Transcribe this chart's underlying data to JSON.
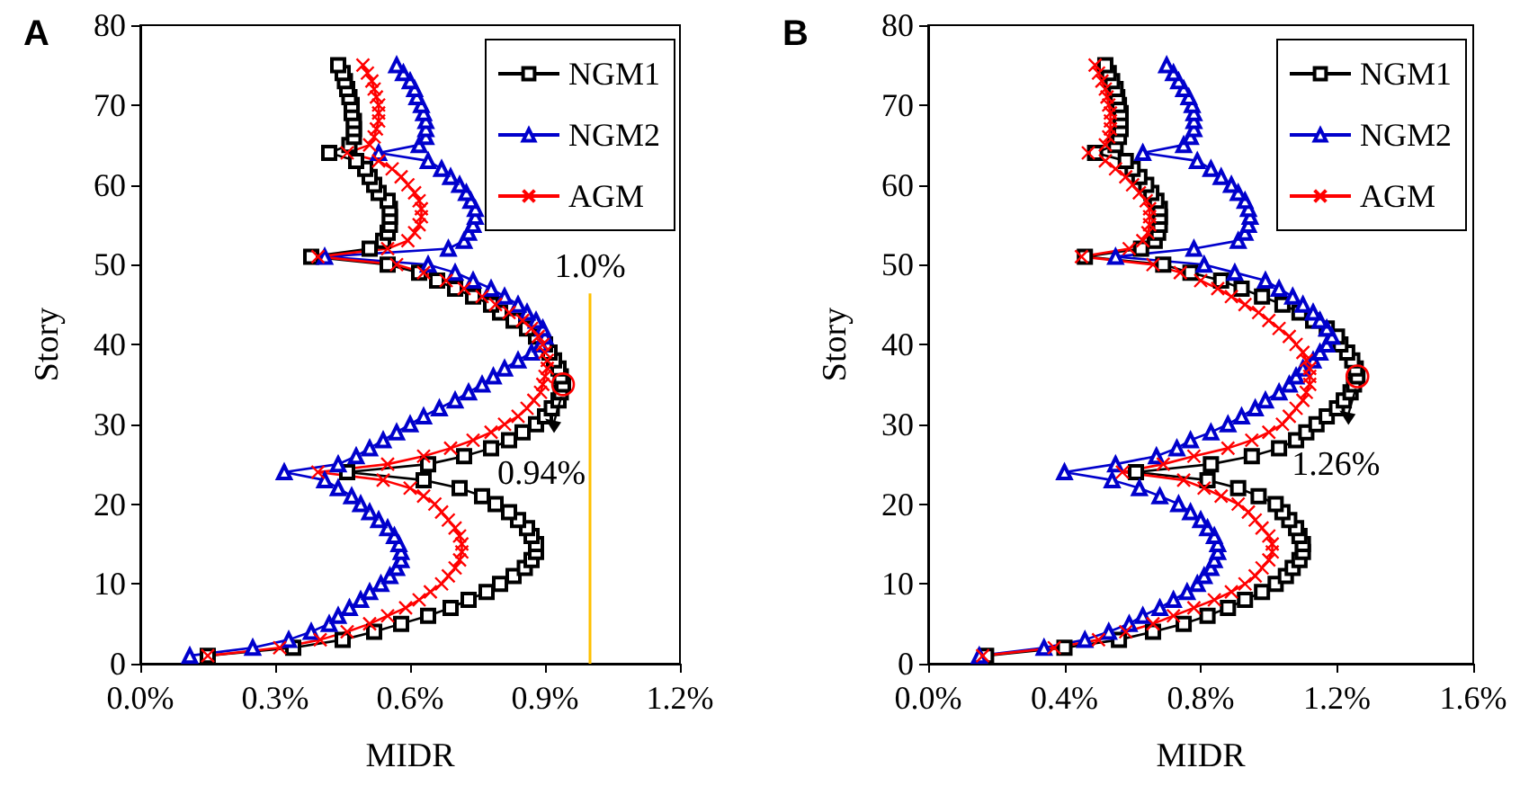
{
  "chart_data": [
    {
      "type": "line",
      "title": "A",
      "xlabel": "MIDR",
      "ylabel": "Story",
      "xlim": [
        0,
        1.2
      ],
      "xticks": [
        {
          "value": 0,
          "label": "0.0%"
        },
        {
          "value": 0.3,
          "label": "0.3%"
        },
        {
          "value": 0.6,
          "label": "0.6%"
        },
        {
          "value": 0.9,
          "label": "0.9%"
        },
        {
          "value": 1.2,
          "label": "1.2%"
        }
      ],
      "ylim": [
        0,
        80
      ],
      "yticks": [
        0,
        10,
        20,
        30,
        40,
        50,
        60,
        70,
        80
      ],
      "grid": false,
      "legend": "top right",
      "line_style": "solid",
      "series": [
        {
          "name": "NGM1",
          "color": "#000000",
          "marker": "square",
          "x": [
            0.15,
            0.34,
            0.45,
            0.52,
            0.58,
            0.64,
            0.69,
            0.73,
            0.77,
            0.8,
            0.83,
            0.855,
            0.87,
            0.88,
            0.88,
            0.87,
            0.86,
            0.84,
            0.82,
            0.79,
            0.76,
            0.71,
            0.63,
            0.46,
            0.64,
            0.72,
            0.78,
            0.82,
            0.85,
            0.88,
            0.9,
            0.915,
            0.93,
            0.935,
            0.94,
            0.935,
            0.93,
            0.92,
            0.91,
            0.9,
            0.88,
            0.86,
            0.83,
            0.8,
            0.78,
            0.74,
            0.7,
            0.66,
            0.62,
            0.55,
            0.38,
            0.51,
            0.54,
            0.55,
            0.555,
            0.555,
            0.555,
            0.55,
            0.53,
            0.52,
            0.51,
            0.5,
            0.48,
            0.42,
            0.465,
            0.475,
            0.475,
            0.475,
            0.47,
            0.47,
            0.465,
            0.46,
            0.455,
            0.45,
            0.44
          ],
          "values": [
            1,
            2,
            3,
            4,
            5,
            6,
            7,
            8,
            9,
            10,
            11,
            12,
            13,
            14,
            15,
            16,
            17,
            18,
            19,
            20,
            21,
            22,
            23,
            24,
            25,
            26,
            27,
            28,
            29,
            30,
            31,
            32,
            33,
            34,
            35,
            36,
            37,
            38,
            39,
            40,
            41,
            42,
            43,
            44,
            45,
            46,
            47,
            48,
            49,
            50,
            51,
            52,
            53,
            54,
            55,
            56,
            57,
            58,
            59,
            60,
            61,
            62,
            63,
            64,
            65,
            66,
            67,
            68,
            69,
            70,
            71,
            72,
            73,
            74,
            75
          ]
        },
        {
          "name": "NGM2",
          "color": "#0000cc",
          "marker": "triangle",
          "x": [
            0.11,
            0.25,
            0.33,
            0.38,
            0.42,
            0.44,
            0.465,
            0.49,
            0.51,
            0.535,
            0.555,
            0.57,
            0.58,
            0.58,
            0.575,
            0.565,
            0.55,
            0.53,
            0.51,
            0.49,
            0.47,
            0.44,
            0.41,
            0.32,
            0.44,
            0.48,
            0.51,
            0.54,
            0.57,
            0.6,
            0.63,
            0.665,
            0.7,
            0.73,
            0.76,
            0.785,
            0.81,
            0.84,
            0.87,
            0.89,
            0.9,
            0.895,
            0.88,
            0.86,
            0.84,
            0.81,
            0.78,
            0.74,
            0.7,
            0.64,
            0.41,
            0.685,
            0.72,
            0.73,
            0.74,
            0.745,
            0.745,
            0.735,
            0.725,
            0.71,
            0.69,
            0.67,
            0.64,
            0.53,
            0.62,
            0.635,
            0.635,
            0.635,
            0.63,
            0.625,
            0.615,
            0.61,
            0.6,
            0.585,
            0.57
          ],
          "values": [
            1,
            2,
            3,
            4,
            5,
            6,
            7,
            8,
            9,
            10,
            11,
            12,
            13,
            14,
            15,
            16,
            17,
            18,
            19,
            20,
            21,
            22,
            23,
            24,
            25,
            26,
            27,
            28,
            29,
            30,
            31,
            32,
            33,
            34,
            35,
            36,
            37,
            38,
            39,
            40,
            41,
            42,
            43,
            44,
            45,
            46,
            47,
            48,
            49,
            50,
            51,
            52,
            53,
            54,
            55,
            56,
            57,
            58,
            59,
            60,
            61,
            62,
            63,
            64,
            65,
            66,
            67,
            68,
            69,
            70,
            71,
            72,
            73,
            74,
            75
          ]
        },
        {
          "name": "AGM",
          "color": "#ff0000",
          "marker": "cross",
          "x": [
            0.15,
            0.31,
            0.4,
            0.46,
            0.51,
            0.55,
            0.59,
            0.62,
            0.645,
            0.67,
            0.685,
            0.7,
            0.71,
            0.715,
            0.715,
            0.71,
            0.7,
            0.685,
            0.67,
            0.655,
            0.63,
            0.6,
            0.54,
            0.395,
            0.55,
            0.63,
            0.69,
            0.74,
            0.78,
            0.81,
            0.84,
            0.86,
            0.875,
            0.89,
            0.895,
            0.9,
            0.905,
            0.905,
            0.9,
            0.895,
            0.885,
            0.87,
            0.85,
            0.82,
            0.79,
            0.76,
            0.72,
            0.68,
            0.63,
            0.57,
            0.395,
            0.55,
            0.595,
            0.61,
            0.62,
            0.625,
            0.625,
            0.62,
            0.61,
            0.595,
            0.58,
            0.56,
            0.53,
            0.46,
            0.51,
            0.52,
            0.525,
            0.53,
            0.53,
            0.53,
            0.525,
            0.52,
            0.515,
            0.505,
            0.495
          ],
          "values": [
            1,
            2,
            3,
            4,
            5,
            6,
            7,
            8,
            9,
            10,
            11,
            12,
            13,
            14,
            15,
            16,
            17,
            18,
            19,
            20,
            21,
            22,
            23,
            24,
            25,
            26,
            27,
            28,
            29,
            30,
            31,
            32,
            33,
            34,
            35,
            36,
            37,
            38,
            39,
            40,
            41,
            42,
            43,
            44,
            45,
            46,
            47,
            48,
            49,
            50,
            51,
            52,
            53,
            54,
            55,
            56,
            57,
            58,
            59,
            60,
            61,
            62,
            63,
            64,
            65,
            66,
            67,
            68,
            69,
            70,
            71,
            72,
            73,
            74,
            75
          ]
        }
      ],
      "ref_lines": [
        {
          "axis": "x",
          "value": 1.0,
          "label": "1.0%",
          "color": "#ffc000"
        }
      ],
      "annotations": [
        {
          "text": "0.94%",
          "x": 0.94,
          "y": 35
        }
      ]
    },
    {
      "type": "line",
      "title": "B",
      "xlabel": "MIDR",
      "ylabel": "Story",
      "xlim": [
        0,
        1.6
      ],
      "xticks": [
        {
          "value": 0,
          "label": "0.0%"
        },
        {
          "value": 0.4,
          "label": "0.4%"
        },
        {
          "value": 0.8,
          "label": "0.8%"
        },
        {
          "value": 1.2,
          "label": "1.2%"
        },
        {
          "value": 1.6,
          "label": "1.6%"
        }
      ],
      "ylim": [
        0,
        80
      ],
      "yticks": [
        0,
        10,
        20,
        30,
        40,
        50,
        60,
        70,
        80
      ],
      "grid": false,
      "legend": "top right",
      "line_style": "solid",
      "series": [
        {
          "name": "NGM1",
          "color": "#000000",
          "marker": "square",
          "x": [
            0.17,
            0.4,
            0.56,
            0.66,
            0.75,
            0.82,
            0.88,
            0.93,
            0.98,
            1.02,
            1.05,
            1.07,
            1.09,
            1.1,
            1.1,
            1.09,
            1.08,
            1.06,
            1.04,
            1.02,
            0.97,
            0.91,
            0.82,
            0.61,
            0.83,
            0.95,
            1.03,
            1.08,
            1.11,
            1.14,
            1.17,
            1.2,
            1.22,
            1.24,
            1.25,
            1.26,
            1.255,
            1.245,
            1.23,
            1.21,
            1.2,
            1.17,
            1.13,
            1.09,
            1.04,
            0.98,
            0.92,
            0.86,
            0.77,
            0.69,
            0.46,
            0.625,
            0.665,
            0.675,
            0.68,
            0.68,
            0.68,
            0.67,
            0.655,
            0.64,
            0.62,
            0.6,
            0.58,
            0.49,
            0.55,
            0.56,
            0.565,
            0.565,
            0.565,
            0.56,
            0.555,
            0.55,
            0.54,
            0.53,
            0.52
          ],
          "values": [
            1,
            2,
            3,
            4,
            5,
            6,
            7,
            8,
            9,
            10,
            11,
            12,
            13,
            14,
            15,
            16,
            17,
            18,
            19,
            20,
            21,
            22,
            23,
            24,
            25,
            26,
            27,
            28,
            29,
            30,
            31,
            32,
            33,
            34,
            35,
            36,
            37,
            38,
            39,
            40,
            41,
            42,
            43,
            44,
            45,
            46,
            47,
            48,
            49,
            50,
            51,
            52,
            53,
            54,
            55,
            56,
            57,
            58,
            59,
            60,
            61,
            62,
            63,
            64,
            65,
            66,
            67,
            68,
            69,
            70,
            71,
            72,
            73,
            74,
            75
          ]
        },
        {
          "name": "NGM2",
          "color": "#0000cc",
          "marker": "triangle",
          "x": [
            0.15,
            0.34,
            0.46,
            0.53,
            0.59,
            0.63,
            0.68,
            0.72,
            0.76,
            0.79,
            0.81,
            0.83,
            0.84,
            0.85,
            0.85,
            0.84,
            0.82,
            0.8,
            0.77,
            0.735,
            0.68,
            0.62,
            0.54,
            0.4,
            0.55,
            0.67,
            0.73,
            0.77,
            0.83,
            0.88,
            0.92,
            0.96,
            0.99,
            1.03,
            1.06,
            1.08,
            1.1,
            1.13,
            1.15,
            1.17,
            1.185,
            1.17,
            1.15,
            1.13,
            1.1,
            1.07,
            1.03,
            0.99,
            0.9,
            0.81,
            0.55,
            0.78,
            0.91,
            0.93,
            0.94,
            0.945,
            0.94,
            0.93,
            0.91,
            0.89,
            0.86,
            0.83,
            0.79,
            0.63,
            0.75,
            0.77,
            0.78,
            0.78,
            0.78,
            0.775,
            0.765,
            0.75,
            0.735,
            0.72,
            0.7
          ],
          "values": [
            1,
            2,
            3,
            4,
            5,
            6,
            7,
            8,
            9,
            10,
            11,
            12,
            13,
            14,
            15,
            16,
            17,
            18,
            19,
            20,
            21,
            22,
            23,
            24,
            25,
            26,
            27,
            28,
            29,
            30,
            31,
            32,
            33,
            34,
            35,
            36,
            37,
            38,
            39,
            40,
            41,
            42,
            43,
            44,
            45,
            46,
            47,
            48,
            49,
            50,
            51,
            52,
            53,
            54,
            55,
            56,
            57,
            58,
            59,
            60,
            61,
            62,
            63,
            64,
            65,
            66,
            67,
            68,
            69,
            70,
            71,
            72,
            73,
            74,
            75
          ]
        },
        {
          "name": "AGM",
          "color": "#ff0000",
          "marker": "cross",
          "x": [
            0.16,
            0.37,
            0.5,
            0.58,
            0.66,
            0.72,
            0.78,
            0.84,
            0.89,
            0.93,
            0.96,
            0.98,
            1.0,
            1.01,
            1.01,
            1.0,
            0.98,
            0.96,
            0.94,
            0.91,
            0.86,
            0.81,
            0.75,
            0.57,
            0.69,
            0.78,
            0.88,
            0.95,
            1.0,
            1.04,
            1.06,
            1.08,
            1.1,
            1.11,
            1.12,
            1.12,
            1.12,
            1.11,
            1.1,
            1.08,
            1.06,
            1.03,
            1.0,
            0.97,
            0.93,
            0.89,
            0.85,
            0.8,
            0.74,
            0.66,
            0.45,
            0.59,
            0.63,
            0.645,
            0.65,
            0.65,
            0.65,
            0.64,
            0.62,
            0.6,
            0.58,
            0.55,
            0.52,
            0.47,
            0.52,
            0.53,
            0.535,
            0.535,
            0.535,
            0.53,
            0.525,
            0.52,
            0.51,
            0.5,
            0.49
          ],
          "values": [
            1,
            2,
            3,
            4,
            5,
            6,
            7,
            8,
            9,
            10,
            11,
            12,
            13,
            14,
            15,
            16,
            17,
            18,
            19,
            20,
            21,
            22,
            23,
            24,
            25,
            26,
            27,
            28,
            29,
            30,
            31,
            32,
            33,
            34,
            35,
            36,
            37,
            38,
            39,
            40,
            41,
            42,
            43,
            44,
            45,
            46,
            47,
            48,
            49,
            50,
            51,
            52,
            53,
            54,
            55,
            56,
            57,
            58,
            59,
            60,
            61,
            62,
            63,
            64,
            65,
            66,
            67,
            68,
            69,
            70,
            71,
            72,
            73,
            74,
            75
          ]
        }
      ],
      "annotations": [
        {
          "text": "1.26%",
          "x": 1.26,
          "y": 36
        }
      ]
    }
  ]
}
